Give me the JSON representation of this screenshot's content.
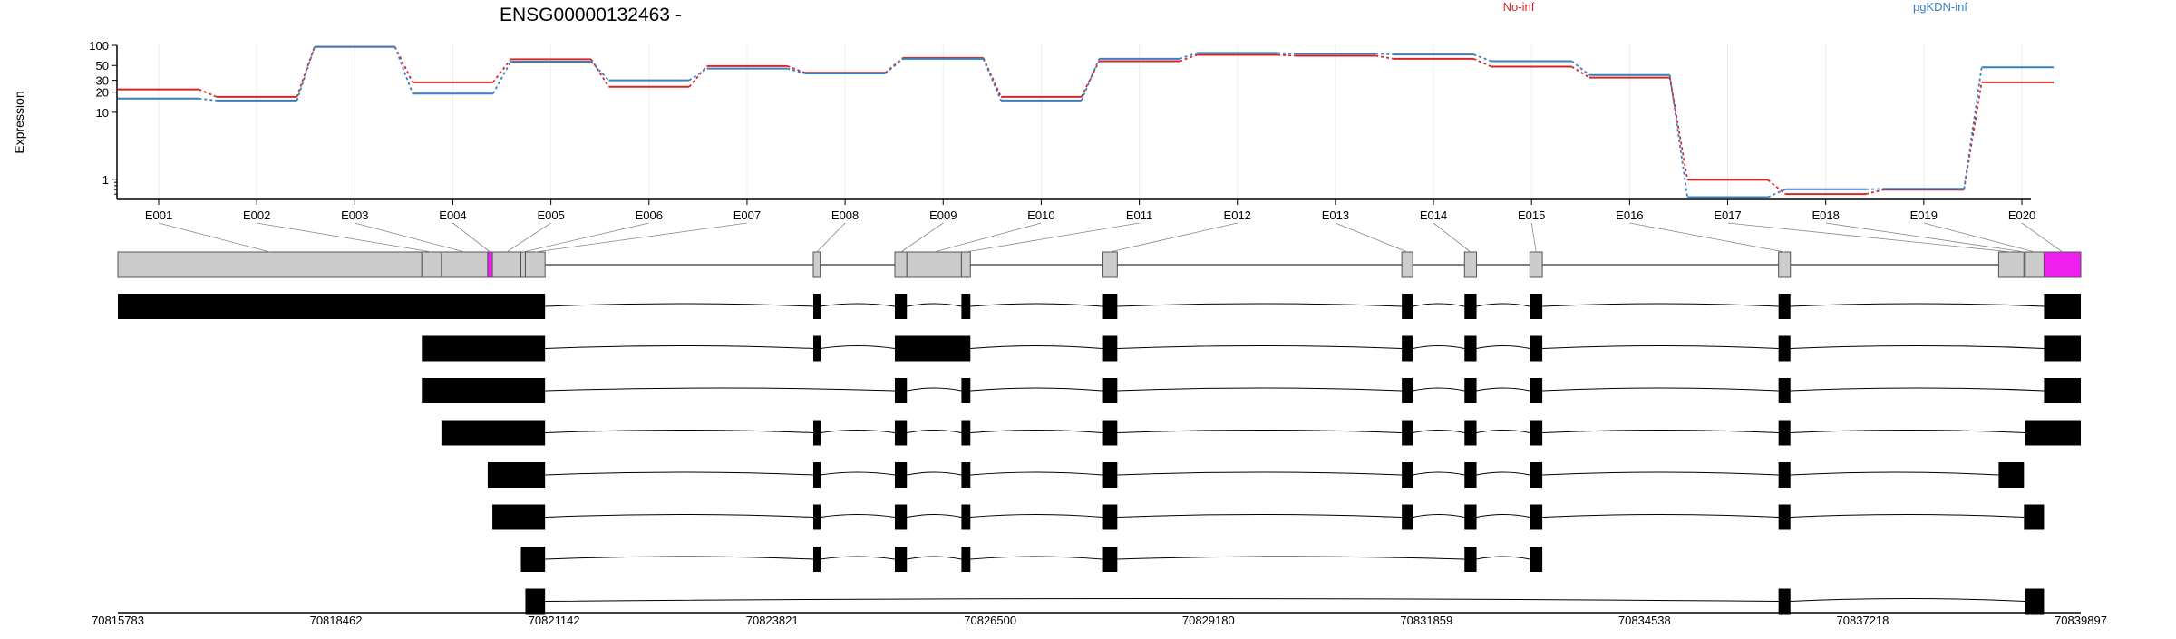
{
  "chart_data": {
    "type": "line",
    "title": "ENSG00000132463 -",
    "ylabel": "Expression",
    "y_scale": "log",
    "ylim": [
      0.5,
      100
    ],
    "y_ticks": [
      1,
      10,
      20,
      30,
      50,
      100
    ],
    "grid": "vertical",
    "legend_placement": "top",
    "categories": [
      "E001",
      "E002",
      "E003",
      "E004",
      "E005",
      "E006",
      "E007",
      "E008",
      "E009",
      "E010",
      "E011",
      "E012",
      "E013",
      "E014",
      "E015",
      "E016",
      "E017",
      "E018",
      "E019",
      "E020"
    ],
    "series": [
      {
        "name": "No-inf",
        "color": "#d62728",
        "values": [
          22,
          17,
          95,
          28,
          62,
          24,
          49,
          39,
          65,
          17,
          58,
          72,
          70,
          63,
          48,
          33,
          0.98,
          0.6,
          0.7,
          28
        ]
      },
      {
        "name": "pgKDN-inf",
        "color": "#3a7fc0",
        "values": [
          16,
          15,
          95,
          19,
          57,
          30,
          45,
          38,
          63,
          15,
          63,
          77,
          75,
          73,
          58,
          36,
          0.54,
          0.71,
          0.72,
          47
        ]
      }
    ],
    "gene_model": {
      "genomic_axis_ticks": [
        "70815783",
        "70818462",
        "70821142",
        "70823821",
        "70826500",
        "70829180",
        "70831859",
        "70834538",
        "70837218",
        "70839897"
      ],
      "genomic_start": 70815783,
      "genomic_end": 70839897,
      "exons": [
        {
          "id": "E001",
          "start": 70815783,
          "end": 70819517
        },
        {
          "id": "E002",
          "start": 70819517,
          "end": 70819758
        },
        {
          "id": "E003",
          "start": 70819758,
          "end": 70820326
        },
        {
          "id": "E004",
          "start": 70820326,
          "end": 70820384
        },
        {
          "id": "E005",
          "start": 70820384,
          "end": 70820734
        },
        {
          "id": "E006",
          "start": 70820734,
          "end": 70820789
        },
        {
          "id": "E007",
          "start": 70820789,
          "end": 70821031
        },
        {
          "id": "E008",
          "start": 70824326,
          "end": 70824411
        },
        {
          "id": "E009",
          "start": 70825328,
          "end": 70825476
        },
        {
          "id": "E010",
          "start": 70825476,
          "end": 70826146
        },
        {
          "id": "E011",
          "start": 70826146,
          "end": 70826256
        },
        {
          "id": "E012",
          "start": 70827874,
          "end": 70828061
        },
        {
          "id": "E013",
          "start": 70831556,
          "end": 70831690
        },
        {
          "id": "E014",
          "start": 70832326,
          "end": 70832474
        },
        {
          "id": "E015",
          "start": 70833129,
          "end": 70833282
        },
        {
          "id": "E016",
          "start": 70836184,
          "end": 70836330
        },
        {
          "id": "E017",
          "start": 70838888,
          "end": 70839199
        },
        {
          "id": "E018",
          "start": 70839199,
          "end": 70839216
        },
        {
          "id": "E019",
          "start": 70839216,
          "end": 70839445
        },
        {
          "id": "E020",
          "start": 70839445,
          "end": 70839897
        }
      ],
      "highlighted_exons": [
        "E004",
        "E020"
      ],
      "highlight_color": "#ee20ee",
      "transcripts": [
        [
          [
            70815783,
            70821031
          ],
          [
            70824326,
            70824411
          ],
          [
            70825328,
            70825476
          ],
          [
            70826146,
            70826256
          ],
          [
            70827874,
            70828061
          ],
          [
            70831556,
            70831690
          ],
          [
            70832326,
            70832474
          ],
          [
            70833129,
            70833282
          ],
          [
            70836184,
            70836330
          ],
          [
            70839445,
            70839897
          ]
        ],
        [
          [
            70819517,
            70821031
          ],
          [
            70824326,
            70824411
          ],
          [
            70825328,
            70826256
          ],
          [
            70827874,
            70828061
          ],
          [
            70831556,
            70831690
          ],
          [
            70832326,
            70832474
          ],
          [
            70833129,
            70833282
          ],
          [
            70836184,
            70836330
          ],
          [
            70839445,
            70839897
          ]
        ],
        [
          [
            70819517,
            70821031
          ],
          [
            70825328,
            70825476
          ],
          [
            70826146,
            70826256
          ],
          [
            70827874,
            70828061
          ],
          [
            70831556,
            70831690
          ],
          [
            70832326,
            70832474
          ],
          [
            70833129,
            70833282
          ],
          [
            70836184,
            70836330
          ],
          [
            70839445,
            70839897
          ]
        ],
        [
          [
            70819758,
            70821031
          ],
          [
            70824326,
            70824411
          ],
          [
            70825328,
            70825476
          ],
          [
            70826146,
            70826256
          ],
          [
            70827874,
            70828061
          ],
          [
            70831556,
            70831690
          ],
          [
            70832326,
            70832474
          ],
          [
            70833129,
            70833282
          ],
          [
            70836184,
            70836330
          ],
          [
            70839216,
            70839897
          ]
        ],
        [
          [
            70820326,
            70821031
          ],
          [
            70824326,
            70824411
          ],
          [
            70825328,
            70825476
          ],
          [
            70826146,
            70826256
          ],
          [
            70827874,
            70828061
          ],
          [
            70831556,
            70831690
          ],
          [
            70832326,
            70832474
          ],
          [
            70833129,
            70833282
          ],
          [
            70836184,
            70836330
          ],
          [
            70838888,
            70839199
          ]
        ],
        [
          [
            70820384,
            70821031
          ],
          [
            70824326,
            70824411
          ],
          [
            70825328,
            70825476
          ],
          [
            70826146,
            70826256
          ],
          [
            70827874,
            70828061
          ],
          [
            70831556,
            70831690
          ],
          [
            70832326,
            70832474
          ],
          [
            70833129,
            70833282
          ],
          [
            70836184,
            70836330
          ],
          [
            70839199,
            70839445
          ]
        ],
        [
          [
            70820734,
            70821031
          ],
          [
            70824326,
            70824411
          ],
          [
            70825328,
            70825476
          ],
          [
            70826146,
            70826256
          ],
          [
            70827874,
            70828061
          ],
          [
            70832326,
            70832474
          ],
          [
            70833129,
            70833282
          ]
        ],
        [
          [
            70820789,
            70821031
          ],
          [
            70836184,
            70836330
          ],
          [
            70839216,
            70839445
          ]
        ]
      ]
    }
  }
}
